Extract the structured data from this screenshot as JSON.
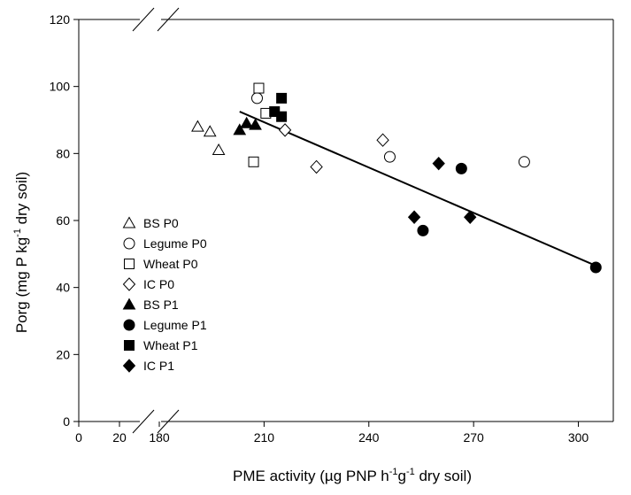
{
  "chart_data": {
    "type": "scatter",
    "xlabel": "PME activity (µg PNP h",
    "xlabel_sup1": "-1",
    "xlabel_mid": "g",
    "xlabel_sup2": "-1",
    "xlabel_end": " dry soil)",
    "ylabel": "Porg (mg P kg",
    "ylabel_sup": "-1",
    "ylabel_end": " dry soil)",
    "ylim": [
      0,
      120
    ],
    "yticks": [
      0,
      20,
      40,
      60,
      80,
      100,
      120
    ],
    "x_axis_broken": true,
    "x_segment1_ticks": [
      0,
      20
    ],
    "x_segment2_ticks": [
      180,
      210,
      240,
      270,
      300
    ],
    "x_segment1_range": [
      0,
      30
    ],
    "x_segment2_range": [
      180,
      310
    ],
    "legend_position": "left",
    "trendline": {
      "x1": 203,
      "y1": 92.5,
      "x2": 305,
      "y2": 46.5
    },
    "series": [
      {
        "name": "BS P0",
        "marker": "triangle",
        "filled": false,
        "points": [
          [
            191,
            88
          ],
          [
            194.5,
            86.5
          ],
          [
            197,
            81
          ]
        ]
      },
      {
        "name": "Legume P0",
        "marker": "circle",
        "filled": false,
        "points": [
          [
            208,
            96.5
          ],
          [
            246,
            79
          ],
          [
            284.5,
            77.5
          ]
        ]
      },
      {
        "name": "Wheat P0",
        "marker": "square",
        "filled": false,
        "points": [
          [
            208.5,
            99.5
          ],
          [
            210.5,
            92
          ],
          [
            207,
            77.5
          ]
        ]
      },
      {
        "name": "IC P0",
        "marker": "diamond",
        "filled": false,
        "points": [
          [
            216,
            87
          ],
          [
            225,
            76
          ],
          [
            244,
            84
          ]
        ]
      },
      {
        "name": "BS P1",
        "marker": "triangle",
        "filled": true,
        "points": [
          [
            203,
            87
          ],
          [
            205,
            89
          ],
          [
            207.5,
            88.5
          ]
        ]
      },
      {
        "name": "Legume P1",
        "marker": "circle",
        "filled": true,
        "points": [
          [
            255.5,
            57
          ],
          [
            266.5,
            75.5
          ],
          [
            305,
            46
          ]
        ]
      },
      {
        "name": "Wheat P1",
        "marker": "square",
        "filled": true,
        "points": [
          [
            213,
            92.5
          ],
          [
            215,
            96.5
          ],
          [
            215,
            91
          ]
        ]
      },
      {
        "name": "IC P1",
        "marker": "diamond",
        "filled": true,
        "points": [
          [
            253,
            61
          ],
          [
            260,
            77
          ],
          [
            269,
            61
          ]
        ]
      }
    ]
  }
}
